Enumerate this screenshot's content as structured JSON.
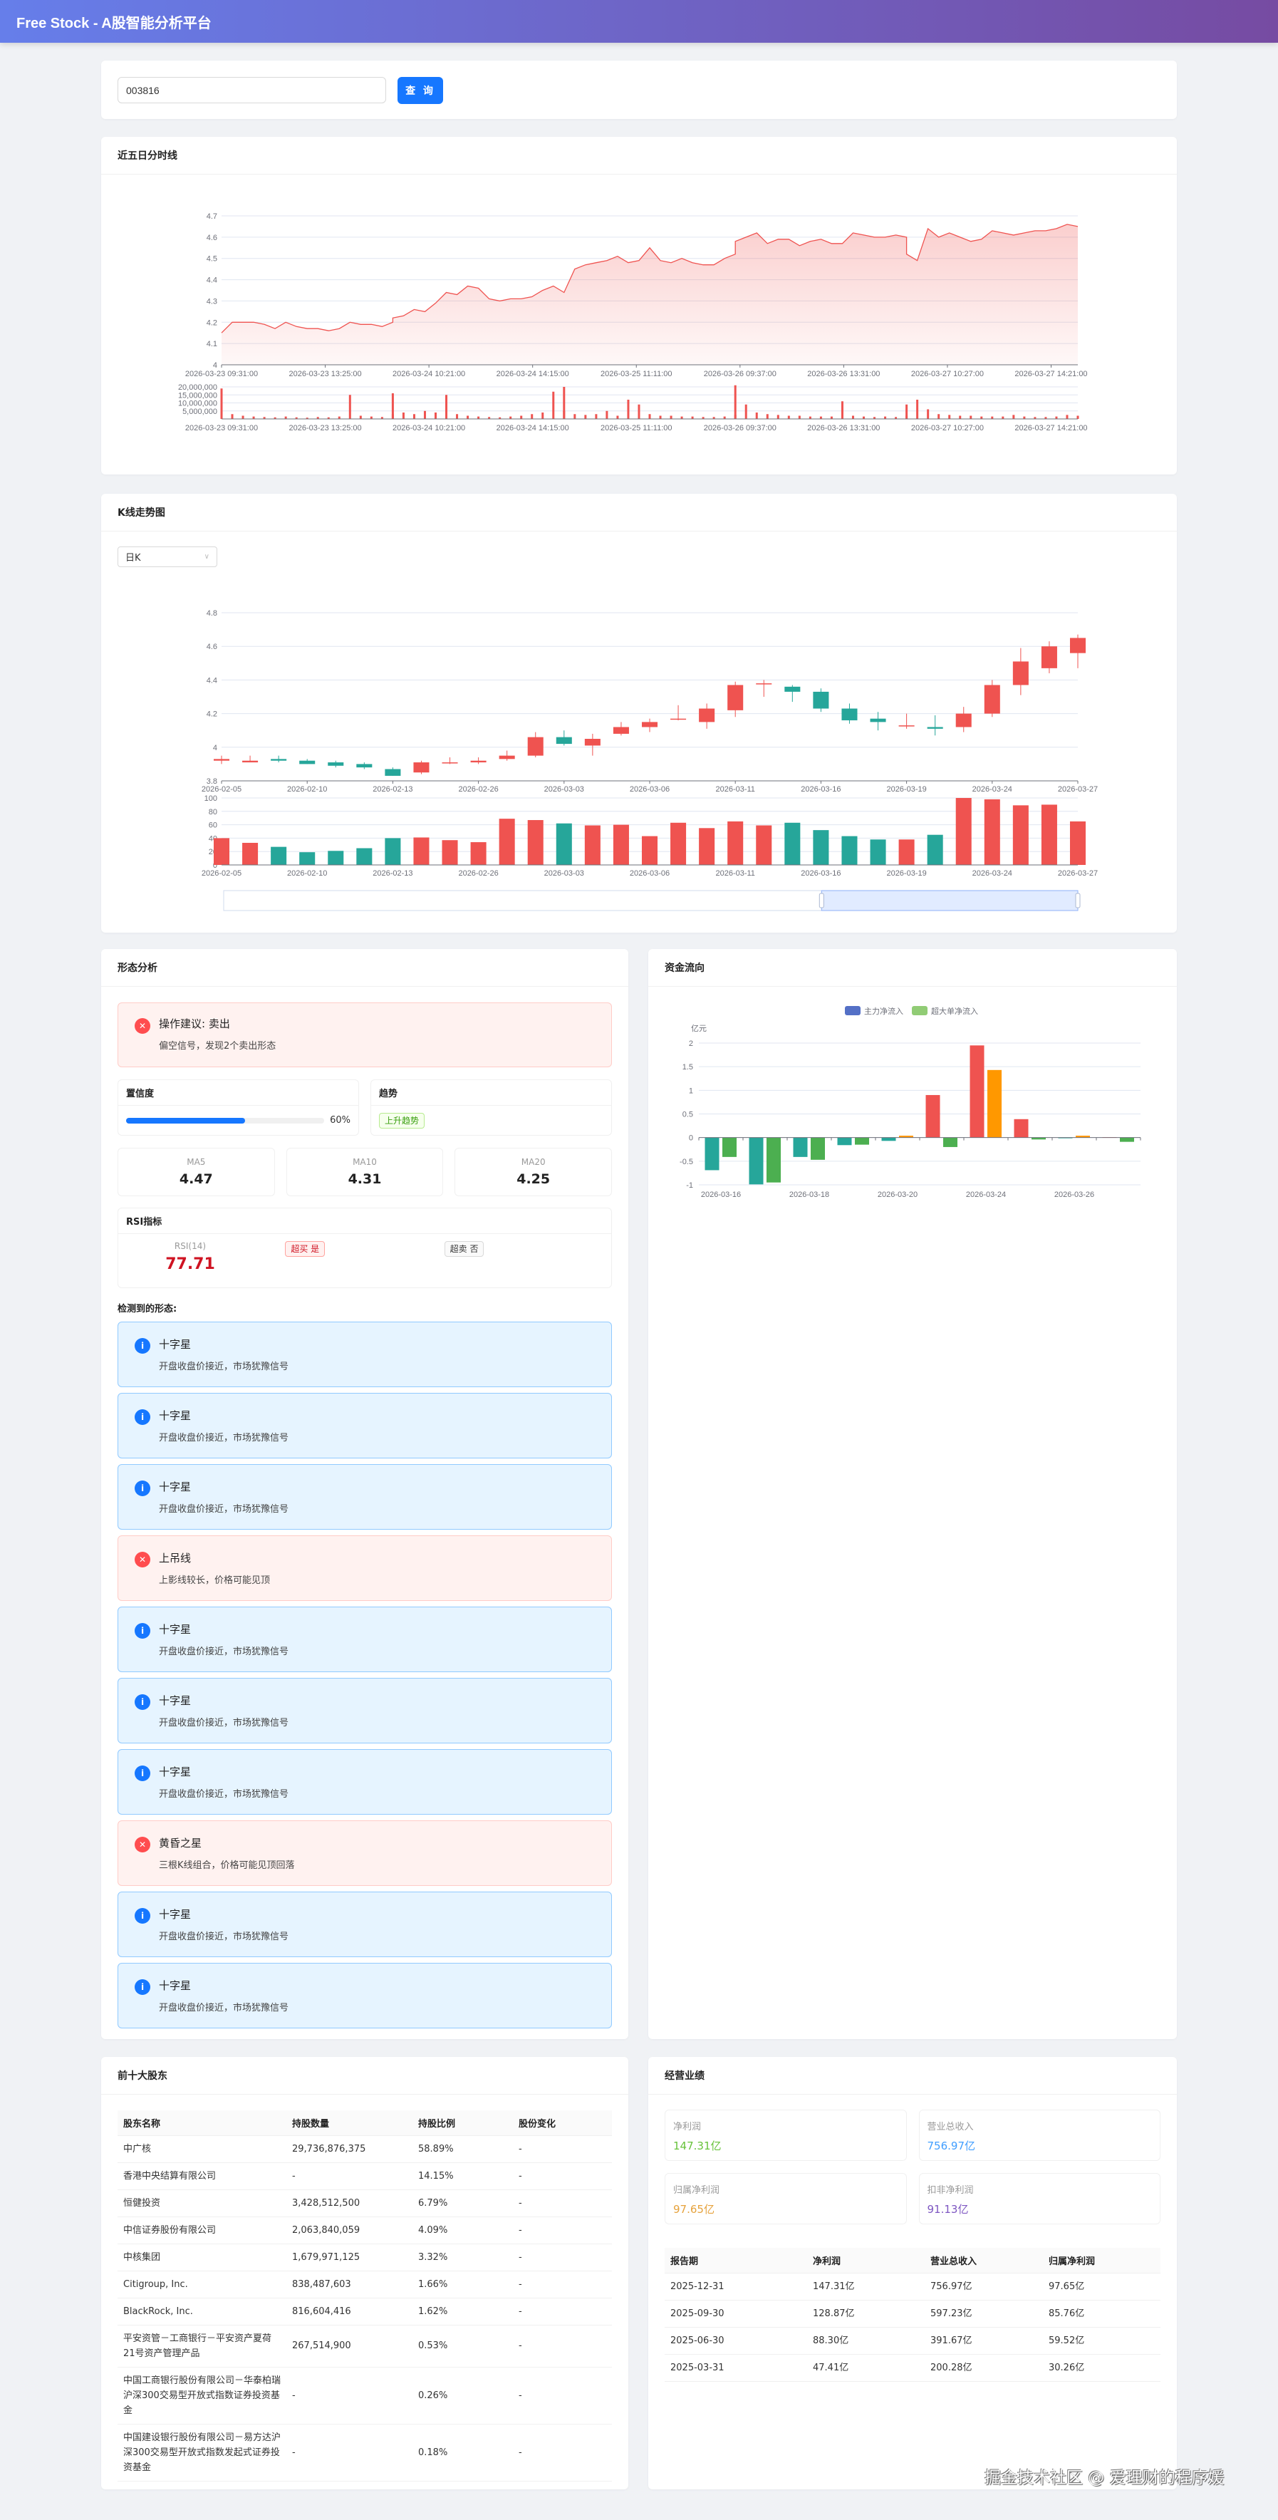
{
  "app": {
    "title": "Free Stock - A股智能分析平台"
  },
  "search": {
    "value": "003816",
    "button": "查 询"
  },
  "colors": {
    "up": "#ef5350",
    "down": "#26a69a",
    "accent": "#1677ff",
    "super_up": "#ff9800",
    "super_down": "#4caf50",
    "legend_main": "#5470c6",
    "legend_super": "#91cc75"
  },
  "intraday": {
    "title": "近五日分时线",
    "chart_data": {
      "type": "area",
      "x_ticks": [
        "2026-03-23 09:31:00",
        "2026-03-23 13:25:00",
        "2026-03-24 10:21:00",
        "2026-03-24 14:15:00",
        "2026-03-25 11:11:00",
        "2026-03-26 09:37:00",
        "2026-03-26 13:31:00",
        "2026-03-27 10:27:00",
        "2026-03-27 14:21:00"
      ],
      "ylim": [
        4.0,
        4.7
      ],
      "y_ticks": [
        "4",
        "4.1",
        "4.2",
        "4.3",
        "4.4",
        "4.5",
        "4.6",
        "4.7"
      ],
      "days": [
        "2026-03-23",
        "2026-03-24",
        "2026-03-25",
        "2026-03-26",
        "2026-03-27"
      ],
      "times": [
        "09:31",
        "09:45",
        "10:00",
        "10:15",
        "10:30",
        "10:45",
        "11:00",
        "11:15",
        "11:30",
        "13:15",
        "13:30",
        "13:45",
        "14:00",
        "14:15",
        "14:30",
        "14:45",
        "15:00"
      ],
      "price": [
        [
          4.15,
          4.2,
          4.2,
          4.2,
          4.19,
          4.17,
          4.2,
          4.18,
          4.17,
          4.17,
          4.16,
          4.17,
          4.2,
          4.19,
          4.19,
          4.18,
          4.2
        ],
        [
          4.22,
          4.23,
          4.26,
          4.25,
          4.29,
          4.34,
          4.33,
          4.37,
          4.36,
          4.31,
          4.3,
          4.31,
          4.31,
          4.32,
          4.35,
          4.37,
          4.34
        ],
        [
          4.34,
          4.45,
          4.47,
          4.48,
          4.49,
          4.51,
          4.48,
          4.49,
          4.55,
          4.49,
          4.48,
          4.5,
          4.48,
          4.47,
          4.47,
          4.5,
          4.52
        ],
        [
          4.58,
          4.6,
          4.62,
          4.57,
          4.59,
          4.59,
          4.56,
          4.58,
          4.59,
          4.57,
          4.57,
          4.62,
          4.61,
          4.6,
          4.6,
          4.61,
          4.6
        ],
        [
          4.52,
          4.49,
          4.64,
          4.6,
          4.62,
          4.6,
          4.58,
          4.59,
          4.63,
          4.62,
          4.61,
          4.62,
          4.63,
          4.63,
          4.64,
          4.66,
          4.65
        ]
      ],
      "volume_ylim": [
        0,
        20000000
      ],
      "volume_ticks": [
        "5,000,000",
        "10,000,000",
        "15,000,000",
        "20,000,000"
      ],
      "volume": [
        [
          19000000,
          3000000,
          2000000,
          1500000,
          1200000,
          1000000,
          1500000,
          1000000,
          800000,
          1200000,
          1000000,
          1500000,
          15000000,
          2000000,
          1500000,
          1200000,
          3000000
        ],
        [
          16000000,
          4000000,
          3000000,
          5000000,
          4000000,
          15000000,
          3000000,
          2000000,
          1500000,
          1200000,
          1000000,
          1500000,
          2000000,
          3000000,
          4000000,
          17000000,
          20000000
        ],
        [
          5000000,
          3000000,
          2500000,
          3000000,
          5000000,
          2000000,
          12000000,
          9000000,
          3000000,
          2000000,
          2000000,
          1500000,
          1500000,
          1200000,
          1200000,
          1500000,
          2500000
        ],
        [
          21000000,
          9000000,
          4000000,
          3000000,
          2500000,
          2000000,
          2000000,
          1500000,
          1500000,
          1500000,
          11000000,
          2000000,
          1500000,
          1200000,
          1500000,
          1200000,
          2000000
        ],
        [
          9000000,
          12000000,
          6000000,
          3000000,
          2500000,
          2000000,
          2000000,
          1500000,
          1500000,
          1500000,
          2500000,
          1500000,
          1200000,
          1200000,
          1500000,
          2500000,
          2000000
        ]
      ]
    }
  },
  "kline": {
    "title": "K线走势图",
    "period_select": "日K",
    "chart_data": {
      "type": "candlestick",
      "ylim": [
        3.8,
        4.8
      ],
      "y_ticks": [
        "3.8",
        "4",
        "4.2",
        "4.4",
        "4.6",
        "4.8"
      ],
      "dates": [
        "2026-02-05",
        "2026-02-06",
        "2026-02-09",
        "2026-02-10",
        "2026-02-11",
        "2026-02-12",
        "2026-02-13",
        "2026-02-24",
        "2026-02-25",
        "2026-02-26",
        "2026-02-27",
        "2026-03-02",
        "2026-03-03",
        "2026-03-04",
        "2026-03-05",
        "2026-03-06",
        "2026-03-09",
        "2026-03-10",
        "2026-03-11",
        "2026-03-12",
        "2026-03-13",
        "2026-03-16",
        "2026-03-17",
        "2026-03-18",
        "2026-03-19",
        "2026-03-20",
        "2026-03-23",
        "2026-03-24",
        "2026-03-25",
        "2026-03-26",
        "2026-03-27"
      ],
      "x_tick_labels": [
        "2026-02-05",
        "2026-02-10",
        "2026-02-13",
        "2026-02-26",
        "2026-03-03",
        "2026-03-06",
        "2026-03-11",
        "2026-03-16",
        "2026-03-19",
        "2026-03-24",
        "2026-03-27"
      ],
      "ohlc": [
        [
          3.92,
          3.93,
          3.95,
          3.9
        ],
        [
          3.91,
          3.92,
          3.95,
          3.91
        ],
        [
          3.93,
          3.92,
          3.95,
          3.91
        ],
        [
          3.92,
          3.9,
          3.93,
          3.9
        ],
        [
          3.91,
          3.89,
          3.92,
          3.88
        ],
        [
          3.9,
          3.88,
          3.91,
          3.87
        ],
        [
          3.87,
          3.83,
          3.88,
          3.83
        ],
        [
          3.85,
          3.91,
          3.92,
          3.84
        ],
        [
          3.91,
          3.91,
          3.94,
          3.9
        ],
        [
          3.91,
          3.92,
          3.94,
          3.9
        ],
        [
          3.93,
          3.95,
          3.98,
          3.92
        ],
        [
          3.95,
          4.06,
          4.09,
          3.94
        ],
        [
          4.06,
          4.02,
          4.1,
          4.01
        ],
        [
          4.01,
          4.05,
          4.08,
          3.95
        ],
        [
          4.08,
          4.12,
          4.15,
          4.07
        ],
        [
          4.12,
          4.15,
          4.17,
          4.09
        ],
        [
          4.17,
          4.17,
          4.25,
          4.16
        ],
        [
          4.15,
          4.23,
          4.26,
          4.11
        ],
        [
          4.22,
          4.37,
          4.39,
          4.18
        ],
        [
          4.38,
          4.38,
          4.4,
          4.3
        ],
        [
          4.36,
          4.33,
          4.37,
          4.27
        ],
        [
          4.33,
          4.23,
          4.35,
          4.21
        ],
        [
          4.23,
          4.16,
          4.26,
          4.14
        ],
        [
          4.17,
          4.15,
          4.21,
          4.1
        ],
        [
          4.13,
          4.13,
          4.2,
          4.11
        ],
        [
          4.12,
          4.11,
          4.19,
          4.07
        ],
        [
          4.12,
          4.2,
          4.24,
          4.09
        ],
        [
          4.2,
          4.37,
          4.4,
          4.18
        ],
        [
          4.37,
          4.51,
          4.59,
          4.31
        ],
        [
          4.47,
          4.6,
          4.63,
          4.44
        ],
        [
          4.56,
          4.65,
          4.67,
          4.47
        ]
      ],
      "volume_ylim": [
        0,
        100
      ],
      "volume_ticks": [
        "0",
        "20",
        "40",
        "60",
        "80",
        "100"
      ],
      "volume": [
        40,
        33,
        27,
        19,
        21,
        25,
        40,
        41,
        37,
        34,
        69,
        67,
        62,
        59,
        60,
        43,
        63,
        55,
        65,
        59,
        63,
        52,
        43,
        38,
        38,
        45,
        100,
        98,
        89,
        90,
        65
      ],
      "volume_up": [
        true,
        true,
        false,
        false,
        false,
        false,
        false,
        true,
        true,
        true,
        true,
        true,
        false,
        true,
        true,
        true,
        true,
        true,
        true,
        true,
        false,
        false,
        false,
        false,
        true,
        false,
        true,
        true,
        true,
        true,
        true
      ],
      "datazoom_range_percent": [
        70,
        100
      ]
    }
  },
  "pattern": {
    "title": "形态分析",
    "advice": {
      "title": "操作建议: 卖出",
      "desc": "偏空信号，发现2个卖出形态",
      "type": "error"
    },
    "confidence": {
      "label": "置信度",
      "value_percent": 60,
      "text": "60%"
    },
    "trend": {
      "label": "趋势",
      "tag": "上升趋势"
    },
    "ma": [
      {
        "label": "MA5",
        "value": "4.47"
      },
      {
        "label": "MA10",
        "value": "4.31"
      },
      {
        "label": "MA20",
        "value": "4.25"
      }
    ],
    "rsi": {
      "title": "RSI指标",
      "label": "RSI(14)",
      "value": "77.71",
      "overbought": "超买 是",
      "oversold": "超卖 否"
    },
    "detected_label": "检测到的形态:",
    "items": [
      {
        "type": "info",
        "title": "十字星",
        "desc": "开盘收盘价接近，市场犹豫信号"
      },
      {
        "type": "info",
        "title": "十字星",
        "desc": "开盘收盘价接近，市场犹豫信号"
      },
      {
        "type": "info",
        "title": "十字星",
        "desc": "开盘收盘价接近，市场犹豫信号"
      },
      {
        "type": "error",
        "title": "上吊线",
        "desc": "上影线较长，价格可能见顶"
      },
      {
        "type": "info",
        "title": "十字星",
        "desc": "开盘收盘价接近，市场犹豫信号"
      },
      {
        "type": "info",
        "title": "十字星",
        "desc": "开盘收盘价接近，市场犹豫信号"
      },
      {
        "type": "info",
        "title": "十字星",
        "desc": "开盘收盘价接近，市场犹豫信号"
      },
      {
        "type": "error",
        "title": "黄昏之星",
        "desc": "三根K线组合，价格可能见顶回落"
      },
      {
        "type": "info",
        "title": "十字星",
        "desc": "开盘收盘价接近，市场犹豫信号"
      },
      {
        "type": "info",
        "title": "十字星",
        "desc": "开盘收盘价接近，市场犹豫信号"
      }
    ]
  },
  "fundflow": {
    "title": "资金流向",
    "chart_data": {
      "type": "bar",
      "categories": [
        "2026-03-16",
        "2026-03-17",
        "2026-03-18",
        "2026-03-19",
        "2026-03-20",
        "2026-03-23",
        "2026-03-24",
        "2026-03-25",
        "2026-03-26",
        "2026-03-27"
      ],
      "x_tick_labels": [
        "2026-03-16",
        "2026-03-18",
        "2026-03-20",
        "2026-03-24",
        "2026-03-26"
      ],
      "ylabel": "亿元",
      "ylim": [
        -1,
        2
      ],
      "y_ticks": [
        "-1",
        "-0.5",
        "0",
        "0.5",
        "1",
        "1.5",
        "2"
      ],
      "legend_position": "top",
      "series": [
        {
          "name": "主力净流入",
          "values": [
            -0.69,
            -0.99,
            -0.41,
            -0.16,
            -0.07,
            0.9,
            1.95,
            0.39,
            -0.01,
            0.01
          ]
        },
        {
          "name": "超大单净流入",
          "values": [
            -0.41,
            -0.95,
            -0.47,
            -0.15,
            0.04,
            -0.2,
            1.43,
            -0.04,
            0.04,
            -0.09
          ]
        }
      ]
    }
  },
  "shareholders": {
    "title": "前十大股东",
    "columns": [
      "股东名称",
      "持股数量",
      "持股比例",
      "股份变化"
    ],
    "rows": [
      [
        "中广核",
        "29,736,876,375",
        "58.89%",
        "-"
      ],
      [
        "香港中央结算有限公司",
        "-",
        "14.15%",
        "-"
      ],
      [
        "恒健投资",
        "3,428,512,500",
        "6.79%",
        "-"
      ],
      [
        "中信证券股份有限公司",
        "2,063,840,059",
        "4.09%",
        "-"
      ],
      [
        "中核集团",
        "1,679,971,125",
        "3.32%",
        "-"
      ],
      [
        "Citigroup, Inc.",
        "838,487,603",
        "1.66%",
        "-"
      ],
      [
        "BlackRock, Inc.",
        "816,604,416",
        "1.62%",
        "-"
      ],
      [
        "平安资管－工商银行－平安资产夏荷21号资产管理产品",
        "267,514,900",
        "0.53%",
        "-"
      ],
      [
        "中国工商银行股份有限公司－华泰柏瑞沪深300交易型开放式指数证券投资基金",
        "-",
        "0.26%",
        "-"
      ],
      [
        "中国建设银行股份有限公司－易方达沪深300交易型开放式指数发起式证券投资基金",
        "-",
        "0.18%",
        "-"
      ]
    ]
  },
  "performance": {
    "title": "经营业绩",
    "stats": [
      {
        "label": "净利润",
        "value": "147.31亿",
        "color": "#67c23a"
      },
      {
        "label": "营业总收入",
        "value": "756.97亿",
        "color": "#409eff"
      },
      {
        "label": "归属净利润",
        "value": "97.65亿",
        "color": "#e6a23c"
      },
      {
        "label": "扣非净利润",
        "value": "91.13亿",
        "color": "#7e57c2"
      }
    ],
    "columns": [
      "报告期",
      "净利润",
      "营业总收入",
      "归属净利润"
    ],
    "rows": [
      [
        "2025-12-31",
        "147.31亿",
        "756.97亿",
        "97.65亿"
      ],
      [
        "2025-09-30",
        "128.87亿",
        "597.23亿",
        "85.76亿"
      ],
      [
        "2025-06-30",
        "88.30亿",
        "391.67亿",
        "59.52亿"
      ],
      [
        "2025-03-31",
        "47.41亿",
        "200.28亿",
        "30.26亿"
      ]
    ]
  },
  "watermark": "掘金技术社区 @ 爱理财的程序媛"
}
